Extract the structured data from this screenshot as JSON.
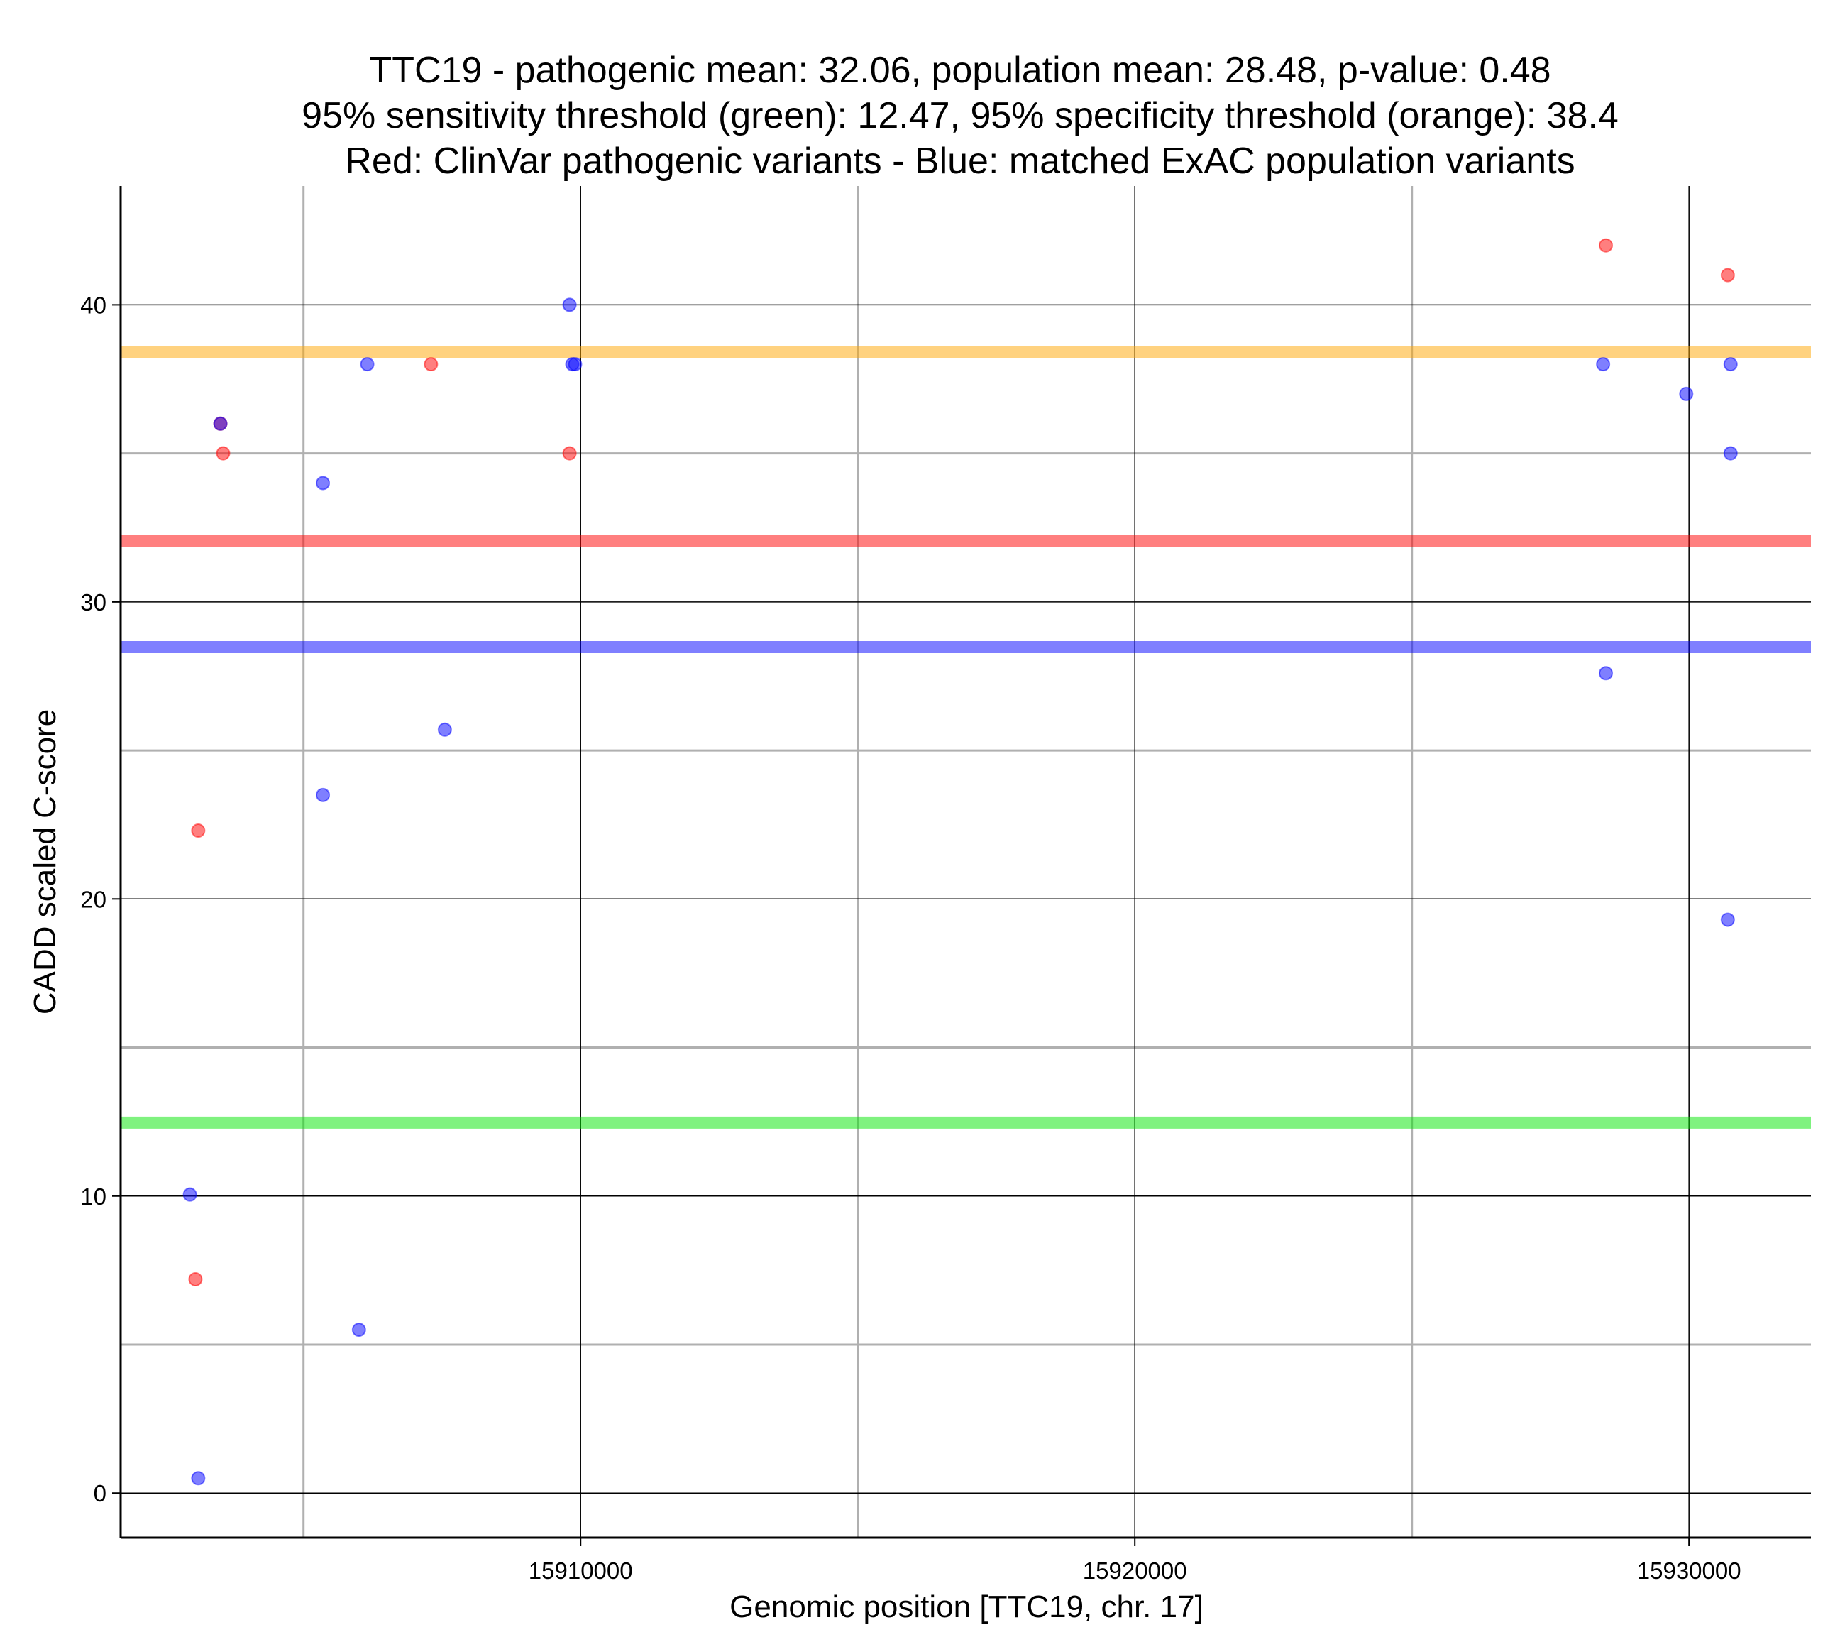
{
  "chart_data": {
    "type": "scatter",
    "title_lines": [
      "TTC19 - pathogenic mean: 32.06, population mean: 28.48, p-value: 0.48",
      "95% sensitivity threshold (green): 12.47, 95% specificity threshold (orange): 38.4",
      "Red: ClinVar pathogenic variants - Blue: matched ExAC population variants"
    ],
    "xlabel": "Genomic position [TTC19, chr. 17]",
    "ylabel": "CADD scaled C-score",
    "xlim": [
      15901700,
      15932200
    ],
    "ylim": [
      -1.5,
      44
    ],
    "x_ticks": [
      {
        "value": 15910000,
        "label": "15910000"
      },
      {
        "value": 15920000,
        "label": "15920000"
      },
      {
        "value": 15930000,
        "label": "15930000"
      }
    ],
    "x_minor_gridlines": [
      15905000,
      15915000,
      15925000
    ],
    "y_ticks": [
      {
        "value": 0,
        "label": "0"
      },
      {
        "value": 10,
        "label": "10"
      },
      {
        "value": 20,
        "label": "20"
      },
      {
        "value": 30,
        "label": "30"
      },
      {
        "value": 40,
        "label": "40"
      }
    ],
    "y_minor_gridlines": [
      5,
      15,
      25,
      35
    ],
    "grid": true,
    "colors": {
      "pathogenic": "#ff0000",
      "population": "#0000ff",
      "sensitivity_threshold": "#00e600",
      "specificity_threshold": "#ffa500",
      "major_grid": "#000000",
      "minor_grid": "#b0b0b0"
    },
    "reference_lines": [
      {
        "name": "95% specificity threshold",
        "y": 38.4,
        "color": "#ffa500"
      },
      {
        "name": "pathogenic mean",
        "y": 32.06,
        "color": "#ff0000"
      },
      {
        "name": "population mean",
        "y": 28.48,
        "color": "#0000ff"
      },
      {
        "name": "95% sensitivity threshold",
        "y": 12.47,
        "color": "#00e600"
      }
    ],
    "series": [
      {
        "name": "ClinVar pathogenic variants",
        "color": "#ff0000",
        "points": [
          {
            "x": 15903500,
            "y": 36
          },
          {
            "x": 15903550,
            "y": 35
          },
          {
            "x": 15903100,
            "y": 22.3
          },
          {
            "x": 15903050,
            "y": 7.2
          },
          {
            "x": 15907300,
            "y": 38
          },
          {
            "x": 15909800,
            "y": 35
          },
          {
            "x": 15928500,
            "y": 42
          },
          {
            "x": 15930700,
            "y": 41
          }
        ]
      },
      {
        "name": "matched ExAC population variants",
        "color": "#0000ff",
        "points": [
          {
            "x": 15903500,
            "y": 36
          },
          {
            "x": 15905350,
            "y": 34
          },
          {
            "x": 15906150,
            "y": 38
          },
          {
            "x": 15905350,
            "y": 23.5
          },
          {
            "x": 15907550,
            "y": 25.7
          },
          {
            "x": 15902950,
            "y": 10.05
          },
          {
            "x": 15906000,
            "y": 5.5
          },
          {
            "x": 15903100,
            "y": 0.5
          },
          {
            "x": 15909800,
            "y": 40
          },
          {
            "x": 15909850,
            "y": 38
          },
          {
            "x": 15909900,
            "y": 38
          },
          {
            "x": 15928450,
            "y": 38
          },
          {
            "x": 15928500,
            "y": 27.6
          },
          {
            "x": 15929950,
            "y": 37
          },
          {
            "x": 15930750,
            "y": 38
          },
          {
            "x": 15930750,
            "y": 35
          },
          {
            "x": 15930700,
            "y": 19.3
          }
        ]
      }
    ]
  }
}
